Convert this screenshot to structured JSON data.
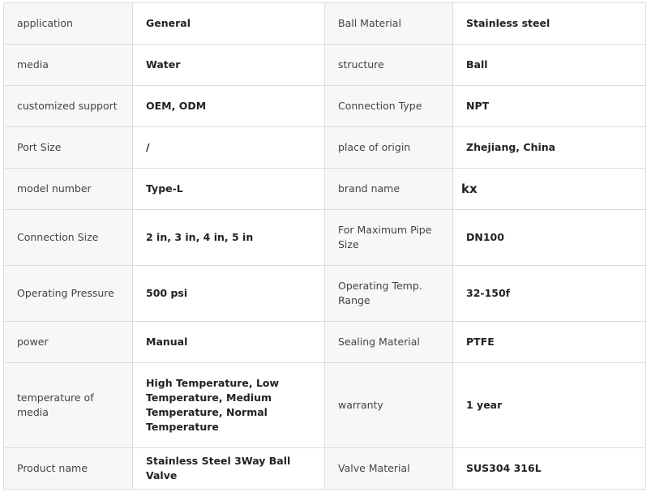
{
  "rows": [
    {
      "k1": "application",
      "v1": "General",
      "k2": "Ball Material",
      "v2": "Stainless steel",
      "h": 51
    },
    {
      "k1": "media",
      "v1": "Water",
      "k2": "structure",
      "v2": "Ball",
      "h": 51
    },
    {
      "k1": "customized support",
      "v1": "OEM, ODM",
      "k2": "Connection Type",
      "v2": "NPT",
      "h": 51
    },
    {
      "k1": "Port Size",
      "v1": "/",
      "k2": "place of origin",
      "v2": "Zhejiang, China",
      "h": 51
    },
    {
      "k1": "model number",
      "v1": "Type-L",
      "k2": "brand name",
      "v2": "kx",
      "h": 51
    },
    {
      "k1": "Connection Size",
      "v1": "2 in, 3 in, 4 in, 5 in",
      "k2": "For Maximum Pipe Size",
      "v2": "DN100",
      "h": 69
    },
    {
      "k1": "Operating Pressure",
      "v1": "500 psi",
      "k2": "Operating Temp. Range",
      "v2": "32-150f",
      "h": 69
    },
    {
      "k1": "power",
      "v1": "Manual",
      "k2": "Sealing Material",
      "v2": "PTFE",
      "h": 51
    },
    {
      "k1": "temperature of media",
      "v1": "High Temperature, Low Temperature, Medium Temperature, Normal Temperature",
      "k2": "warranty",
      "v2": "1 year",
      "h": 105
    },
    {
      "k1": "Product name",
      "v1": "Stainless Steel 3Way Ball Valve",
      "k2": "Valve Material",
      "v2": "SUS304 316L",
      "h": 51
    }
  ]
}
